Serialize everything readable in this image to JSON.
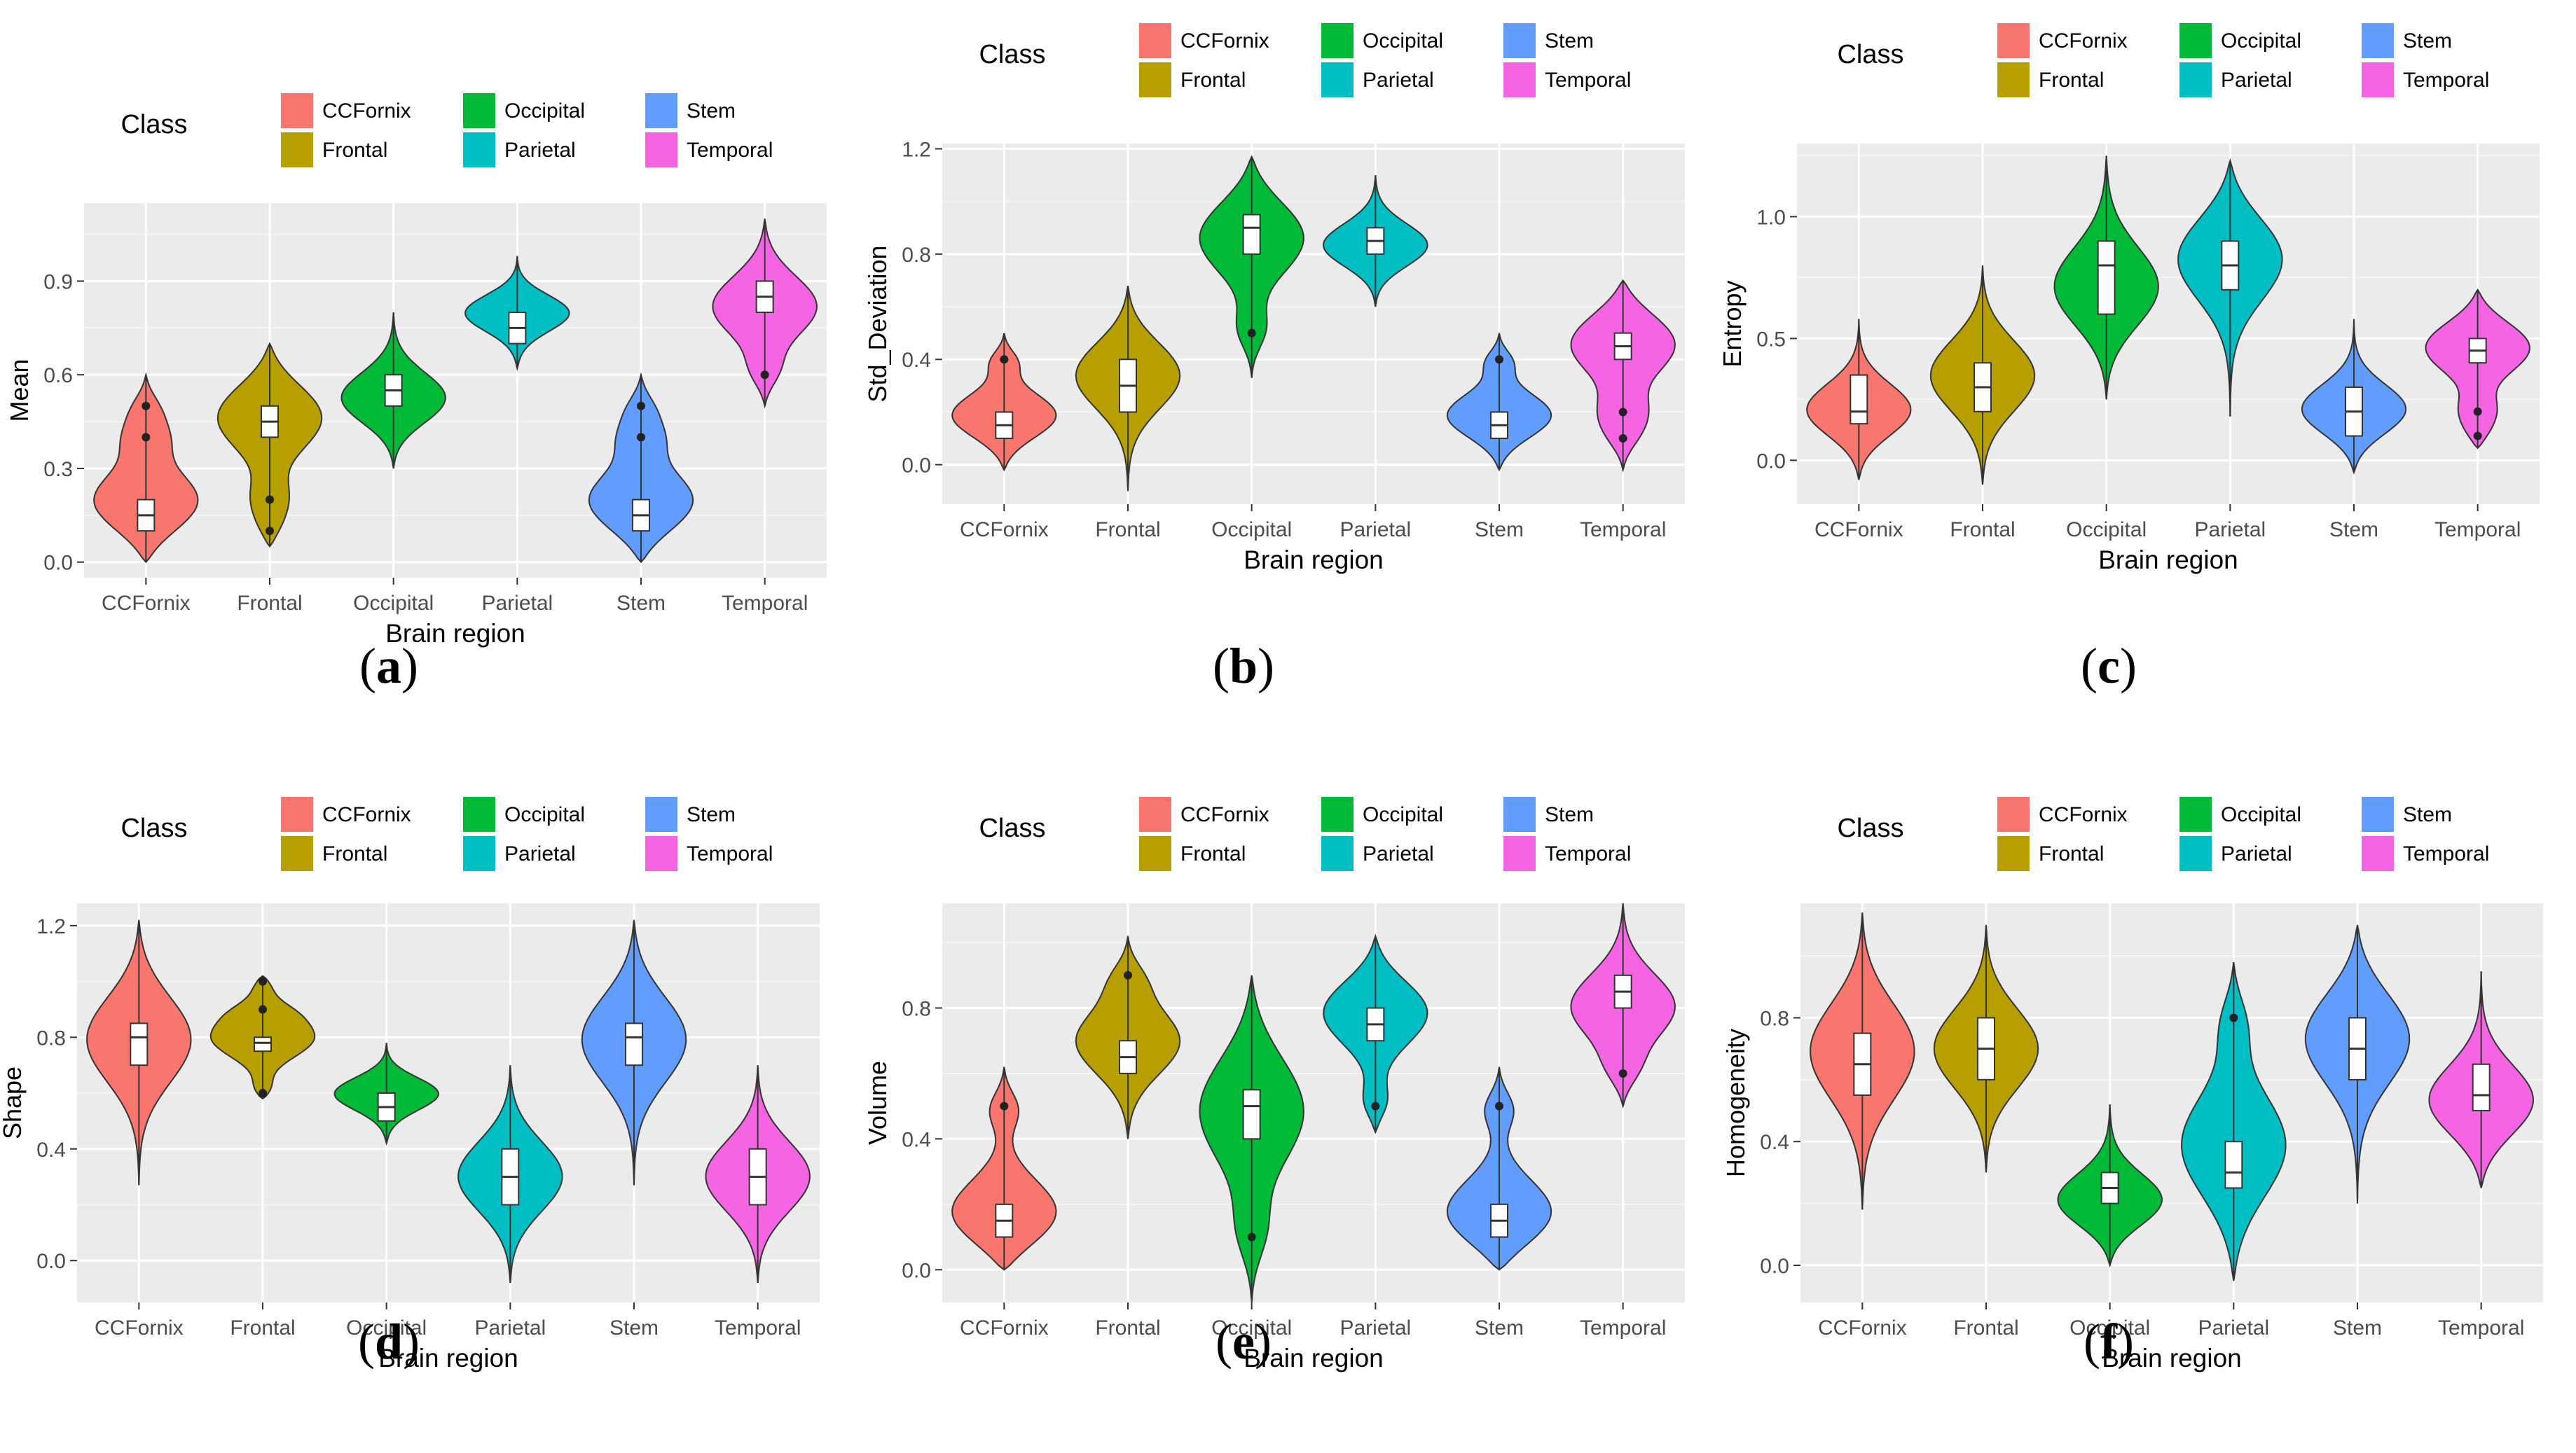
{
  "legend_title": "Class",
  "classes": [
    "CCFornix",
    "Frontal",
    "Occipital",
    "Parietal",
    "Stem",
    "Temporal"
  ],
  "legend_order": [
    "CCFornix",
    "Frontal",
    "Occipital",
    "Parietal",
    "Stem",
    "Temporal"
  ],
  "colors": {
    "CCFornix": "#F8766D",
    "Frontal": "#B79F00",
    "Occipital": "#00BA38",
    "Parietal": "#00BFC4",
    "Stem": "#619CFF",
    "Temporal": "#F564E3"
  },
  "xlabel": "Brain region",
  "chart_data": [
    {
      "id": "a",
      "type": "violin",
      "caption": "a",
      "ylabel": "Mean",
      "ylim": [
        -0.05,
        1.15
      ],
      "yticks": [
        0.0,
        0.3,
        0.6,
        0.9
      ],
      "ytick_labels": [
        "0.0",
        "0.3",
        "0.6",
        "0.9"
      ],
      "categories": [
        "CCFornix",
        "Frontal",
        "Occipital",
        "Parietal",
        "Stem",
        "Temporal"
      ],
      "series": [
        {
          "name": "CCFornix",
          "min": 0.0,
          "max": 0.6,
          "q1": 0.1,
          "median": 0.15,
          "q3": 0.2,
          "mode": 0.18,
          "outliers": [
            0.4,
            0.5
          ]
        },
        {
          "name": "Frontal",
          "min": 0.05,
          "max": 0.7,
          "q1": 0.4,
          "median": 0.45,
          "q3": 0.5,
          "mode": 0.48,
          "outliers": [
            0.1,
            0.2
          ]
        },
        {
          "name": "Occipital",
          "min": 0.3,
          "max": 0.8,
          "q1": 0.5,
          "median": 0.55,
          "q3": 0.6,
          "mode": 0.52,
          "outliers": []
        },
        {
          "name": "Parietal",
          "min": 0.62,
          "max": 0.98,
          "q1": 0.7,
          "median": 0.75,
          "q3": 0.8,
          "mode": 0.8,
          "outliers": []
        },
        {
          "name": "Stem",
          "min": 0.0,
          "max": 0.6,
          "q1": 0.1,
          "median": 0.15,
          "q3": 0.2,
          "mode": 0.18,
          "outliers": [
            0.4,
            0.5
          ]
        },
        {
          "name": "Temporal",
          "min": 0.5,
          "max": 1.1,
          "q1": 0.8,
          "median": 0.85,
          "q3": 0.9,
          "mode": 0.82,
          "outliers": [
            0.6
          ]
        }
      ]
    },
    {
      "id": "b",
      "type": "violin",
      "caption": "b",
      "ylabel": "Std_Deviation",
      "ylim": [
        -0.15,
        1.22
      ],
      "yticks": [
        0.0,
        0.4,
        0.8,
        1.2
      ],
      "ytick_labels": [
        "0.0",
        "0.4",
        "0.8",
        "1.2"
      ],
      "categories": [
        "CCFornix",
        "Frontal",
        "Occipital",
        "Parietal",
        "Stem",
        "Temporal"
      ],
      "series": [
        {
          "name": "CCFornix",
          "min": -0.02,
          "max": 0.5,
          "q1": 0.1,
          "median": 0.15,
          "q3": 0.2,
          "mode": 0.18,
          "outliers": [
            0.4
          ]
        },
        {
          "name": "Frontal",
          "min": -0.1,
          "max": 0.68,
          "q1": 0.2,
          "median": 0.3,
          "q3": 0.4,
          "mode": 0.35,
          "outliers": []
        },
        {
          "name": "Occipital",
          "min": 0.33,
          "max": 1.17,
          "q1": 0.8,
          "median": 0.9,
          "q3": 0.95,
          "mode": 0.88,
          "outliers": [
            0.5
          ]
        },
        {
          "name": "Parietal",
          "min": 0.6,
          "max": 1.1,
          "q1": 0.8,
          "median": 0.85,
          "q3": 0.9,
          "mode": 0.83,
          "outliers": []
        },
        {
          "name": "Stem",
          "min": -0.02,
          "max": 0.5,
          "q1": 0.1,
          "median": 0.15,
          "q3": 0.2,
          "mode": 0.18,
          "outliers": [
            0.4
          ]
        },
        {
          "name": "Temporal",
          "min": -0.02,
          "max": 0.7,
          "q1": 0.4,
          "median": 0.45,
          "q3": 0.5,
          "mode": 0.48,
          "outliers": [
            0.1,
            0.2
          ]
        }
      ]
    },
    {
      "id": "c",
      "type": "violin",
      "caption": "c",
      "ylabel": "Entropy",
      "ylim": [
        -0.18,
        1.3
      ],
      "yticks": [
        0.0,
        0.5,
        1.0
      ],
      "ytick_labels": [
        "0.0",
        "0.5",
        "1.0"
      ],
      "categories": [
        "CCFornix",
        "Frontal",
        "Occipital",
        "Parietal",
        "Stem",
        "Temporal"
      ],
      "series": [
        {
          "name": "CCFornix",
          "min": -0.08,
          "max": 0.58,
          "q1": 0.15,
          "median": 0.2,
          "q3": 0.35,
          "mode": 0.2,
          "outliers": []
        },
        {
          "name": "Frontal",
          "min": -0.1,
          "max": 0.8,
          "q1": 0.2,
          "median": 0.3,
          "q3": 0.4,
          "mode": 0.35,
          "outliers": []
        },
        {
          "name": "Occipital",
          "min": 0.25,
          "max": 1.25,
          "q1": 0.6,
          "median": 0.8,
          "q3": 0.9,
          "mode": 0.7,
          "outliers": []
        },
        {
          "name": "Parietal",
          "min": 0.18,
          "max": 1.23,
          "q1": 0.7,
          "median": 0.8,
          "q3": 0.9,
          "mode": 0.85,
          "outliers": []
        },
        {
          "name": "Stem",
          "min": -0.05,
          "max": 0.58,
          "q1": 0.1,
          "median": 0.2,
          "q3": 0.3,
          "mode": 0.2,
          "outliers": []
        },
        {
          "name": "Temporal",
          "min": 0.05,
          "max": 0.7,
          "q1": 0.4,
          "median": 0.45,
          "q3": 0.5,
          "mode": 0.48,
          "outliers": [
            0.1,
            0.2
          ]
        }
      ]
    },
    {
      "id": "d",
      "type": "violin",
      "caption": "d",
      "ylabel": "Shape",
      "ylim": [
        -0.15,
        1.28
      ],
      "yticks": [
        0.0,
        0.4,
        0.8,
        1.2
      ],
      "ytick_labels": [
        "0.0",
        "0.4",
        "0.8",
        "1.2"
      ],
      "categories": [
        "CCFornix",
        "Frontal",
        "Occipital",
        "Parietal",
        "Stem",
        "Temporal"
      ],
      "series": [
        {
          "name": "CCFornix",
          "min": 0.27,
          "max": 1.22,
          "q1": 0.7,
          "median": 0.8,
          "q3": 0.85,
          "mode": 0.8,
          "outliers": []
        },
        {
          "name": "Frontal",
          "min": 0.58,
          "max": 1.02,
          "q1": 0.75,
          "median": 0.78,
          "q3": 0.8,
          "mode": 0.8,
          "outliers": [
            0.6,
            0.9,
            1.0
          ]
        },
        {
          "name": "Occipital",
          "min": 0.42,
          "max": 0.78,
          "q1": 0.5,
          "median": 0.55,
          "q3": 0.6,
          "mode": 0.6,
          "outliers": []
        },
        {
          "name": "Parietal",
          "min": -0.08,
          "max": 0.7,
          "q1": 0.2,
          "median": 0.3,
          "q3": 0.4,
          "mode": 0.3,
          "outliers": []
        },
        {
          "name": "Stem",
          "min": 0.27,
          "max": 1.22,
          "q1": 0.7,
          "median": 0.8,
          "q3": 0.85,
          "mode": 0.8,
          "outliers": []
        },
        {
          "name": "Temporal",
          "min": -0.08,
          "max": 0.7,
          "q1": 0.2,
          "median": 0.3,
          "q3": 0.4,
          "mode": 0.3,
          "outliers": []
        }
      ]
    },
    {
      "id": "e",
      "type": "violin",
      "caption": "e",
      "ylabel": "Volume",
      "ylim": [
        -0.1,
        1.12
      ],
      "yticks": [
        0.0,
        0.4,
        0.8
      ],
      "ytick_labels": [
        "0.0",
        "0.4",
        "0.8"
      ],
      "categories": [
        "CCFornix",
        "Frontal",
        "Occipital",
        "Parietal",
        "Stem",
        "Temporal"
      ],
      "series": [
        {
          "name": "CCFornix",
          "min": 0.0,
          "max": 0.62,
          "q1": 0.1,
          "median": 0.15,
          "q3": 0.2,
          "mode": 0.15,
          "outliers": [
            0.5
          ]
        },
        {
          "name": "Frontal",
          "min": 0.4,
          "max": 1.02,
          "q1": 0.6,
          "median": 0.65,
          "q3": 0.7,
          "mode": 0.7,
          "outliers": [
            0.9
          ]
        },
        {
          "name": "Occipital",
          "min": -0.1,
          "max": 0.9,
          "q1": 0.4,
          "median": 0.5,
          "q3": 0.55,
          "mode": 0.5,
          "outliers": [
            0.1
          ]
        },
        {
          "name": "Parietal",
          "min": 0.42,
          "max": 1.02,
          "q1": 0.7,
          "median": 0.75,
          "q3": 0.8,
          "mode": 0.8,
          "outliers": [
            0.5
          ]
        },
        {
          "name": "Stem",
          "min": 0.0,
          "max": 0.62,
          "q1": 0.1,
          "median": 0.15,
          "q3": 0.2,
          "mode": 0.15,
          "outliers": [
            0.5
          ]
        },
        {
          "name": "Temporal",
          "min": 0.5,
          "max": 1.12,
          "q1": 0.8,
          "median": 0.85,
          "q3": 0.9,
          "mode": 0.8,
          "outliers": [
            0.6
          ]
        }
      ]
    },
    {
      "id": "f",
      "type": "violin",
      "caption": "f",
      "ylabel": "Homogeneity",
      "ylim": [
        -0.12,
        1.17
      ],
      "yticks": [
        0.0,
        0.4,
        0.8
      ],
      "ytick_labels": [
        "0.0",
        "0.4",
        "0.8"
      ],
      "categories": [
        "CCFornix",
        "Frontal",
        "Occipital",
        "Parietal",
        "Stem",
        "Temporal"
      ],
      "series": [
        {
          "name": "CCFornix",
          "min": 0.18,
          "max": 1.14,
          "q1": 0.55,
          "median": 0.65,
          "q3": 0.75,
          "mode": 0.7,
          "outliers": []
        },
        {
          "name": "Frontal",
          "min": 0.3,
          "max": 1.1,
          "q1": 0.6,
          "median": 0.7,
          "q3": 0.8,
          "mode": 0.7,
          "outliers": []
        },
        {
          "name": "Occipital",
          "min": 0.0,
          "max": 0.52,
          "q1": 0.2,
          "median": 0.25,
          "q3": 0.3,
          "mode": 0.2,
          "outliers": []
        },
        {
          "name": "Parietal",
          "min": -0.05,
          "max": 0.98,
          "q1": 0.25,
          "median": 0.3,
          "q3": 0.4,
          "mode": 0.38,
          "outliers": [
            0.8
          ]
        },
        {
          "name": "Stem",
          "min": 0.2,
          "max": 1.1,
          "q1": 0.6,
          "median": 0.7,
          "q3": 0.8,
          "mode": 0.75,
          "outliers": []
        },
        {
          "name": "Temporal",
          "min": 0.25,
          "max": 0.95,
          "q1": 0.5,
          "median": 0.55,
          "q3": 0.65,
          "mode": 0.52,
          "outliers": []
        }
      ]
    }
  ]
}
